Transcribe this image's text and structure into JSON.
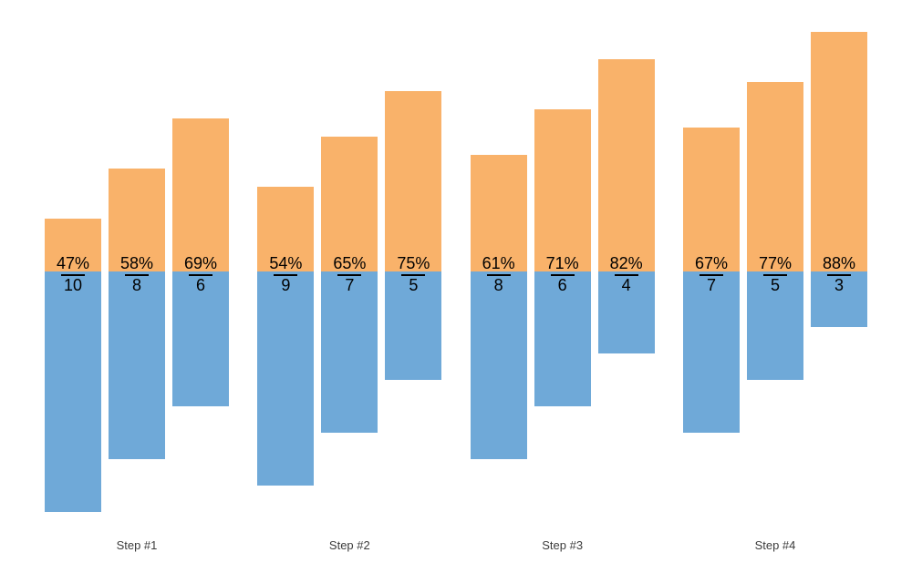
{
  "chart_data": {
    "type": "bar",
    "subtype": "diverging-grouped",
    "title": "",
    "xlabel": "",
    "ylabel": "",
    "legend_position": "none",
    "grid": false,
    "axes_visible": false,
    "categories": [
      "Step #1",
      "Step #2",
      "Step #3",
      "Step #4"
    ],
    "bars_per_group": 3,
    "groups": [
      {
        "label": "Step #1",
        "bars": [
          {
            "percent_label": "47%",
            "percent": 47,
            "count_label": "10",
            "count": 10
          },
          {
            "percent_label": "58%",
            "percent": 58,
            "count_label": "8",
            "count": 8
          },
          {
            "percent_label": "69%",
            "percent": 69,
            "count_label": "6",
            "count": 6
          }
        ]
      },
      {
        "label": "Step #2",
        "bars": [
          {
            "percent_label": "54%",
            "percent": 54,
            "count_label": "9",
            "count": 9
          },
          {
            "percent_label": "65%",
            "percent": 65,
            "count_label": "7",
            "count": 7
          },
          {
            "percent_label": "75%",
            "percent": 75,
            "count_label": "5",
            "count": 5
          }
        ]
      },
      {
        "label": "Step #3",
        "bars": [
          {
            "percent_label": "61%",
            "percent": 61,
            "count_label": "8",
            "count": 8
          },
          {
            "percent_label": "71%",
            "percent": 71,
            "count_label": "6",
            "count": 6
          },
          {
            "percent_label": "82%",
            "percent": 82,
            "count_label": "4",
            "count": 4
          }
        ]
      },
      {
        "label": "Step #4",
        "bars": [
          {
            "percent_label": "67%",
            "percent": 67,
            "count_label": "7",
            "count": 7
          },
          {
            "percent_label": "77%",
            "percent": 77,
            "count_label": "5",
            "count": 5
          },
          {
            "percent_label": "88%",
            "percent": 88,
            "count_label": "3",
            "count": 3
          }
        ]
      }
    ],
    "colors": {
      "above_baseline": "#F9B26A",
      "below_baseline": "#6FA9D8",
      "fraction_line": "#000000",
      "label_text": "#000000",
      "category_text": "#3c3c3c",
      "background": "#ffffff"
    }
  }
}
